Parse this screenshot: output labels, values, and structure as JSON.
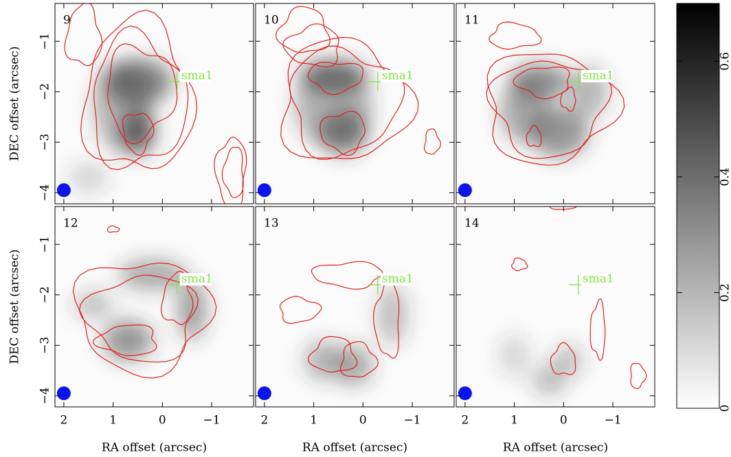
{
  "chart_data": {
    "type": "image-grid",
    "panels": [
      "9",
      "10",
      "11",
      "12",
      "13",
      "14"
    ],
    "marker": {
      "label": "sma1",
      "x": -0.3,
      "y": -1.8
    },
    "x_label": "RA offset (arcsec)",
    "y_label": "DEC offset (arcsec)",
    "xlim": [
      2.18,
      -1.85
    ],
    "ylim": [
      -0.25,
      -4.22
    ],
    "xticks": [
      2,
      1,
      0,
      {
        "value": -1,
        "label": "−1"
      }
    ],
    "yticks": [
      {
        "value": -1,
        "label": "−1"
      },
      {
        "value": -2,
        "label": "−2"
      },
      {
        "value": -3,
        "label": "−3"
      },
      {
        "value": -4,
        "label": "−4"
      }
    ],
    "colorbar": {
      "clim": [
        0,
        0.7
      ],
      "ticks": [
        0,
        0.2,
        0.4,
        0.6
      ]
    },
    "contour_color": "#e0201a",
    "marker_color": "#7fe33a"
  }
}
